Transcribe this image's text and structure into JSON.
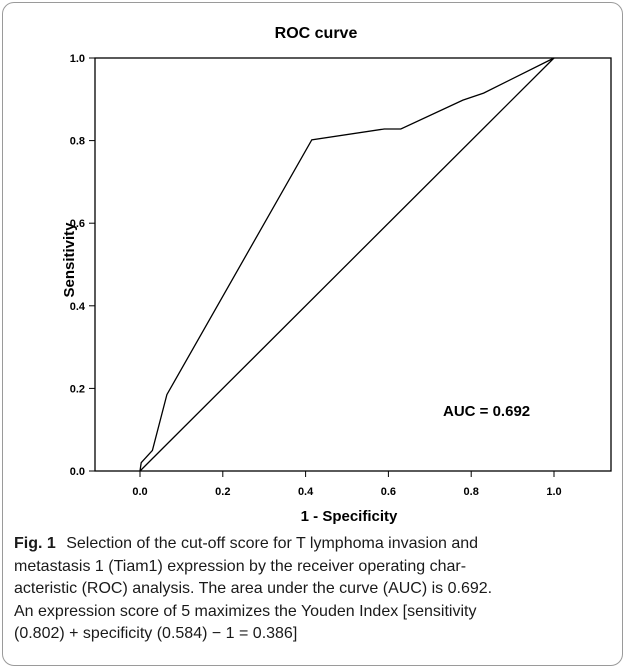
{
  "figure": {
    "label": "Fig. 1",
    "caption_lines": [
      "Selection of the cut-off score for T lymphoma invasion and",
      "metastasis 1 (Tiam1) expression by the receiver operating char-",
      "acteristic (ROC) analysis. The area under the curve (AUC) is 0.692.",
      "An expression score of 5 maximizes the Youden Index [sensitivity",
      "(0.802) + specificity (0.584) − 1 = 0.386]"
    ]
  },
  "chart_data": {
    "type": "line",
    "title": "ROC curve",
    "xlabel": "1 - Specificity",
    "ylabel": "Sensitivity",
    "xlim": [
      0,
      1
    ],
    "ylim": [
      0,
      1
    ],
    "x_ticks": [
      "0.0",
      "0.2",
      "0.4",
      "0.6",
      "0.8",
      "1.0"
    ],
    "y_ticks": [
      "0.0",
      "0.2",
      "0.4",
      "0.6",
      "0.8",
      "1.0"
    ],
    "grid": false,
    "annotation": "AUC = 0.692",
    "series": [
      {
        "x": [
          0.0,
          0.003,
          0.03,
          0.065,
          0.415,
          0.59,
          0.63,
          0.78,
          0.83,
          1.0
        ],
        "y": [
          0.0,
          0.02,
          0.05,
          0.185,
          0.802,
          0.828,
          0.828,
          0.898,
          0.915,
          1.0
        ]
      },
      {
        "x": [
          0.0,
          1.0
        ],
        "y": [
          0.0,
          1.0
        ]
      }
    ],
    "colors": {
      "line": "#000000",
      "axis": "#000000"
    }
  }
}
